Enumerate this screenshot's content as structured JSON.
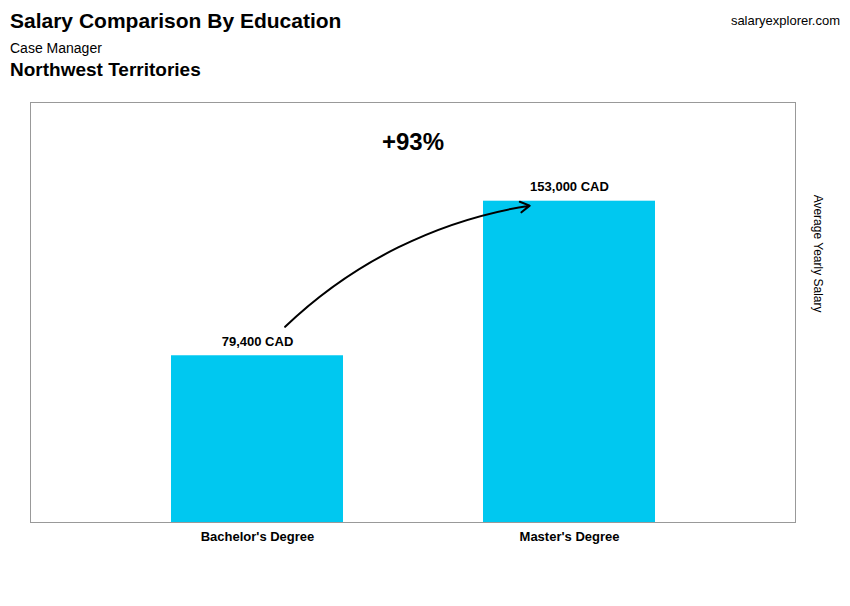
{
  "chart_data": {
    "type": "bar",
    "title": "Salary Comparison By Education",
    "subtitle": "Case Manager",
    "annotations": [
      "Northwest Territories",
      "salaryexplorer.com",
      "+93%"
    ],
    "ylabel": "Average Yearly Salary",
    "categories": [
      "Bachelor's Degree",
      "Master's Degree"
    ],
    "values": [
      79400,
      153000
    ],
    "value_labels": [
      "79,400 CAD",
      "153,000 CAD"
    ],
    "data_labels": true,
    "color": "#00c8f0",
    "ylim": [
      0,
      200000
    ],
    "tick_labels": "x"
  }
}
